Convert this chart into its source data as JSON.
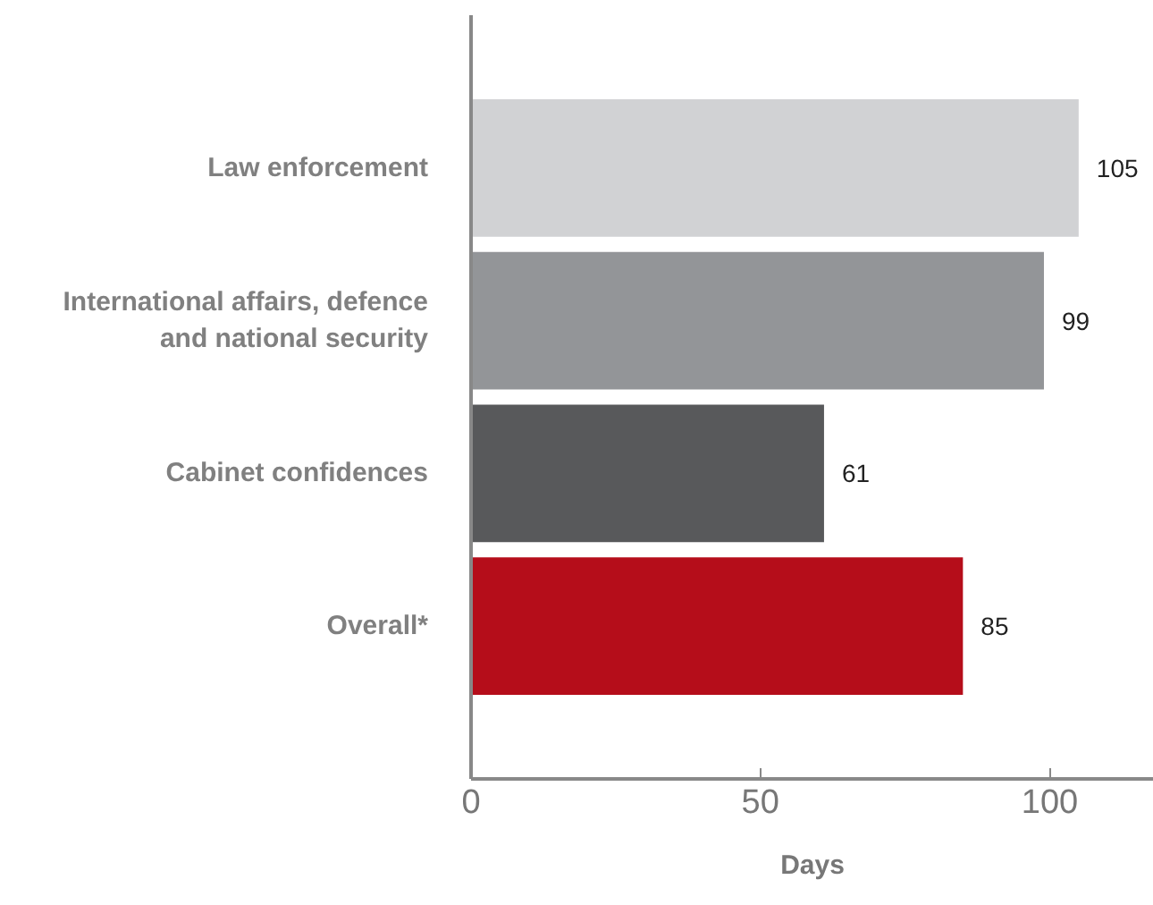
{
  "chart_data": {
    "type": "bar",
    "orientation": "horizontal",
    "xlabel": "Days",
    "categories": [
      "Law enforcement",
      "International affairs, defence and national security",
      "Cabinet confidences",
      "Overall*"
    ],
    "values": [
      105,
      99,
      61,
      85
    ],
    "colors": [
      "#d1d2d4",
      "#939598",
      "#58595b",
      "#b50d1a"
    ],
    "xlim": [
      0,
      118
    ],
    "xticks": [
      0,
      50,
      100
    ],
    "data_labels": true,
    "grid": false
  }
}
